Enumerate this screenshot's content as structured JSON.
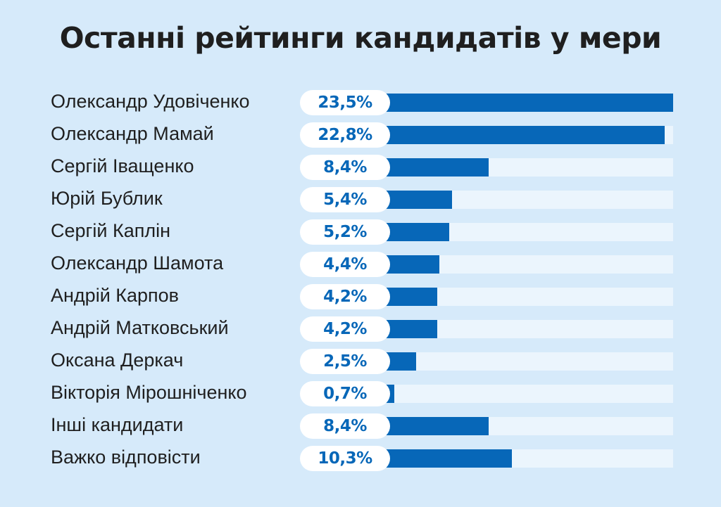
{
  "title": "Останні рейтинги кандидатів у мери",
  "chart_data": {
    "type": "bar",
    "orientation": "horizontal",
    "title": "Останні рейтинги кандидатів у мери",
    "xlim": [
      0,
      23.5
    ],
    "categories": [
      "Олександр Удовіченко",
      "Олександр Мамай",
      "Сергій Іващенко",
      "Юрій Бублик",
      "Сергій Каплін",
      "Олександр Шамота",
      "Андрій Карпов",
      "Андрій Матковський",
      "Оксана Деркач",
      "Вікторія Мірошніченко",
      "Інші кандидати",
      "Важко відповісти"
    ],
    "values": [
      23.5,
      22.8,
      8.4,
      5.4,
      5.2,
      4.4,
      4.2,
      4.2,
      2.5,
      0.7,
      8.4,
      10.3
    ],
    "labels": [
      "23,5%",
      "22,8%",
      "8,4%",
      "5,4%",
      "5,2%",
      "4,4%",
      "4,2%",
      "4,2%",
      "2,5%",
      "0,7%",
      "8,4%",
      "10,3%"
    ],
    "colors": {
      "background": "#d6eafa",
      "bar": "#0767b8",
      "track": "#ebf5fd",
      "label_pill": "#ffffff",
      "label_text": "#0767b8",
      "text": "#1f1f1f"
    }
  }
}
